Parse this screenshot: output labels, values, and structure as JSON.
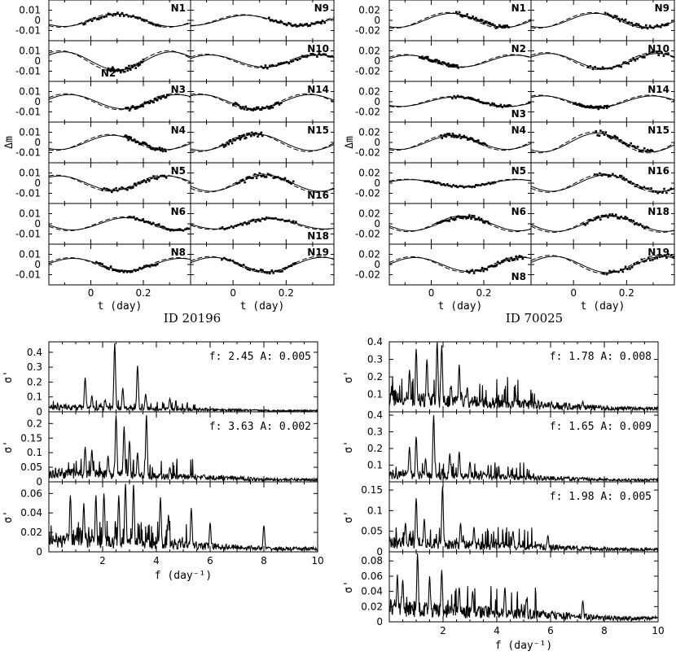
{
  "chart_data": [
    {
      "id": "lc_20196",
      "type": "scatter",
      "title": "ID 20196",
      "xlabel": "t (day)",
      "ylabel": "Δm",
      "xlim": [
        -0.16,
        0.38
      ],
      "x_ticks": [
        "0",
        "0.2"
      ],
      "y_ticks": [
        "0.01",
        "0",
        "-0.01"
      ],
      "ylim": [
        -0.02,
        0.02
      ],
      "period": 0.41,
      "left_column": [
        {
          "name": "N1",
          "amp": 0.006,
          "phase": 0.0,
          "label_pos": "top-right"
        },
        {
          "name": "N2",
          "amp": 0.009,
          "phase": 3.14,
          "label_pos": "bottom-left"
        },
        {
          "name": "N3",
          "amp": 0.007,
          "phase": 2.8,
          "label_pos": "top-right"
        },
        {
          "name": "N4",
          "amp": 0.007,
          "phase": 0.3,
          "label_pos": "top-right"
        },
        {
          "name": "N5",
          "amp": 0.007,
          "phase": 3.4,
          "label_pos": "top-right"
        },
        {
          "name": "N6",
          "amp": 0.006,
          "phase": -0.5,
          "label_pos": "top-right"
        },
        {
          "name": "N8",
          "amp": 0.006,
          "phase": 2.6,
          "label_pos": "top-right"
        }
      ],
      "right_column": [
        {
          "name": "N9",
          "amp": 0.005,
          "phase": 0.8,
          "label_pos": "top-right"
        },
        {
          "name": "N10",
          "amp": 0.006,
          "phase": 2.9,
          "label_pos": "top-right"
        },
        {
          "name": "N14",
          "amp": 0.007,
          "phase": 3.4,
          "label_pos": "top-right"
        },
        {
          "name": "N15",
          "amp": 0.008,
          "phase": 0.2,
          "label_pos": "top-right"
        },
        {
          "name": "N16",
          "amp": 0.008,
          "phase": -0.3,
          "label_pos": "bottom-right"
        },
        {
          "name": "N18",
          "amp": 0.005,
          "phase": -0.6,
          "label_pos": "bottom-right"
        },
        {
          "name": "N19",
          "amp": 0.007,
          "phase": 2.7,
          "label_pos": "top-right"
        }
      ]
    },
    {
      "id": "lc_70025",
      "type": "scatter",
      "title": "ID 70025",
      "xlabel": "t (day)",
      "ylabel": "Δm",
      "xlim": [
        -0.16,
        0.38
      ],
      "x_ticks": [
        "0",
        "0.2"
      ],
      "y_ticks": [
        "0.02",
        "0",
        "-0.02"
      ],
      "ylim": [
        -0.035,
        0.035
      ],
      "period": 0.41,
      "left_column": [
        {
          "name": "N1",
          "amp": 0.012,
          "phase": 0.4,
          "label_pos": "top-right"
        },
        {
          "name": "N2",
          "amp": 0.01,
          "phase": 2.9,
          "label_pos": "top-right"
        },
        {
          "name": "N3",
          "amp": 0.008,
          "phase": 0.2,
          "label_pos": "bottom-right"
        },
        {
          "name": "N4",
          "amp": 0.012,
          "phase": 0.3,
          "label_pos": "top-right"
        },
        {
          "name": "N5",
          "amp": 0.006,
          "phase": 2.8,
          "label_pos": "top-right"
        },
        {
          "name": "N6",
          "amp": 0.012,
          "phase": -0.4,
          "label_pos": "top-right"
        },
        {
          "name": "N8",
          "amp": 0.012,
          "phase": 2.5,
          "label_pos": "bottom-right"
        }
      ],
      "right_column": [
        {
          "name": "N9",
          "amp": 0.012,
          "phase": 0.3,
          "label_pos": "top-right"
        },
        {
          "name": "N10",
          "amp": 0.013,
          "phase": 3.0,
          "label_pos": "top-right"
        },
        {
          "name": "N14",
          "amp": 0.01,
          "phase": 3.3,
          "label_pos": "top-right"
        },
        {
          "name": "N15",
          "amp": 0.016,
          "phase": 0.2,
          "label_pos": "top-right"
        },
        {
          "name": "N16",
          "amp": 0.014,
          "phase": -0.3,
          "label_pos": "top-right"
        },
        {
          "name": "N18",
          "amp": 0.013,
          "phase": -0.6,
          "label_pos": "top-right"
        },
        {
          "name": "N19",
          "amp": 0.014,
          "phase": 2.7,
          "label_pos": "top-right"
        }
      ]
    },
    {
      "id": "ps_20196",
      "type": "line",
      "xlabel": "f (day⁻¹)",
      "ylabel": "σ'",
      "xlim": [
        0,
        10
      ],
      "x_ticks": [
        2,
        4,
        6,
        8,
        10
      ],
      "panels": [
        {
          "annotation": "f: 2.45 A: 0.005",
          "ylim": [
            0,
            0.47
          ],
          "y_ticks": [
            0,
            0.1,
            0.2,
            0.3,
            0.4
          ],
          "base": 0.02,
          "peaks": [
            {
              "f": 2.45,
              "h": 0.46
            },
            {
              "f": 3.3,
              "h": 0.31
            },
            {
              "f": 1.35,
              "h": 0.23
            },
            {
              "f": 1.6,
              "h": 0.11
            },
            {
              "f": 2.75,
              "h": 0.16
            },
            {
              "f": 4.5,
              "h": 0.09
            },
            {
              "f": 3.6,
              "h": 0.12
            },
            {
              "f": 2.1,
              "h": 0.08
            }
          ]
        },
        {
          "annotation": "f: 3.63 A: 0.002",
          "ylim": [
            0,
            0.24
          ],
          "y_ticks": [
            0,
            0.05,
            0.1,
            0.15,
            0.2
          ],
          "base": 0.02,
          "peaks": [
            {
              "f": 2.5,
              "h": 0.23
            },
            {
              "f": 3.63,
              "h": 0.23
            },
            {
              "f": 2.8,
              "h": 0.19
            },
            {
              "f": 3.0,
              "h": 0.14
            },
            {
              "f": 1.35,
              "h": 0.12
            },
            {
              "f": 1.6,
              "h": 0.11
            },
            {
              "f": 2.2,
              "h": 0.09
            },
            {
              "f": 4.5,
              "h": 0.05
            },
            {
              "f": 3.3,
              "h": 0.1
            }
          ]
        },
        {
          "annotation": "",
          "ylim": [
            0,
            0.072
          ],
          "y_ticks": [
            0,
            0.02,
            0.04,
            0.06
          ],
          "base": 0.008,
          "peaks": [
            {
              "f": 0.8,
              "h": 0.058
            },
            {
              "f": 1.3,
              "h": 0.05
            },
            {
              "f": 1.75,
              "h": 0.058
            },
            {
              "f": 2.05,
              "h": 0.06
            },
            {
              "f": 2.6,
              "h": 0.058
            },
            {
              "f": 2.85,
              "h": 0.07
            },
            {
              "f": 3.15,
              "h": 0.069
            },
            {
              "f": 4.15,
              "h": 0.056
            },
            {
              "f": 4.45,
              "h": 0.038
            },
            {
              "f": 5.3,
              "h": 0.045
            },
            {
              "f": 6.0,
              "h": 0.03
            },
            {
              "f": 8.0,
              "h": 0.027
            }
          ]
        }
      ]
    },
    {
      "id": "ps_70025",
      "type": "line",
      "xlabel": "f (day⁻¹)",
      "ylabel": "σ'",
      "xlim": [
        0,
        10
      ],
      "x_ticks": [
        2,
        4,
        6,
        8,
        10
      ],
      "panels": [
        {
          "annotation": "f: 1.78 A: 0.008",
          "ylim": [
            0,
            0.4
          ],
          "y_ticks": [
            0.1,
            0.2,
            0.3,
            0.4
          ],
          "base": 0.05,
          "peaks": [
            {
              "f": 1.78,
              "h": 0.4
            },
            {
              "f": 1.0,
              "h": 0.36
            },
            {
              "f": 1.95,
              "h": 0.38
            },
            {
              "f": 0.75,
              "h": 0.24
            },
            {
              "f": 1.4,
              "h": 0.3
            },
            {
              "f": 2.6,
              "h": 0.27
            },
            {
              "f": 2.3,
              "h": 0.15
            },
            {
              "f": 2.9,
              "h": 0.14
            },
            {
              "f": 4.7,
              "h": 0.1
            },
            {
              "f": 7.2,
              "h": 0.06
            }
          ]
        },
        {
          "annotation": "f: 1.65 A: 0.009",
          "ylim": [
            0,
            0.42
          ],
          "y_ticks": [
            0.1,
            0.2,
            0.3,
            0.4
          ],
          "base": 0.03,
          "peaks": [
            {
              "f": 1.65,
              "h": 0.4
            },
            {
              "f": 0.75,
              "h": 0.21
            },
            {
              "f": 1.0,
              "h": 0.27
            },
            {
              "f": 2.6,
              "h": 0.18
            },
            {
              "f": 2.25,
              "h": 0.17
            },
            {
              "f": 1.35,
              "h": 0.14
            },
            {
              "f": 3.0,
              "h": 0.12
            }
          ]
        },
        {
          "annotation": "f: 1.98 A: 0.005",
          "ylim": [
            0,
            0.17
          ],
          "y_ticks": [
            0,
            0.05,
            0.1,
            0.15
          ],
          "base": 0.015,
          "peaks": [
            {
              "f": 1.98,
              "h": 0.16
            },
            {
              "f": 1.0,
              "h": 0.13
            },
            {
              "f": 1.3,
              "h": 0.08
            },
            {
              "f": 0.6,
              "h": 0.07
            },
            {
              "f": 2.65,
              "h": 0.07
            },
            {
              "f": 3.15,
              "h": 0.06
            },
            {
              "f": 4.6,
              "h": 0.05
            },
            {
              "f": 5.9,
              "h": 0.04
            }
          ]
        },
        {
          "annotation": "",
          "ylim": [
            0,
            0.092
          ],
          "y_ticks": [
            0,
            0.02,
            0.04,
            0.06,
            0.08
          ],
          "base": 0.012,
          "peaks": [
            {
              "f": 1.05,
              "h": 0.09
            },
            {
              "f": 0.3,
              "h": 0.062
            },
            {
              "f": 0.5,
              "h": 0.055
            },
            {
              "f": 1.5,
              "h": 0.06
            },
            {
              "f": 1.95,
              "h": 0.068
            },
            {
              "f": 2.6,
              "h": 0.045
            },
            {
              "f": 3.1,
              "h": 0.04
            },
            {
              "f": 4.3,
              "h": 0.045
            },
            {
              "f": 5.1,
              "h": 0.03
            },
            {
              "f": 7.2,
              "h": 0.028
            }
          ]
        }
      ]
    }
  ]
}
